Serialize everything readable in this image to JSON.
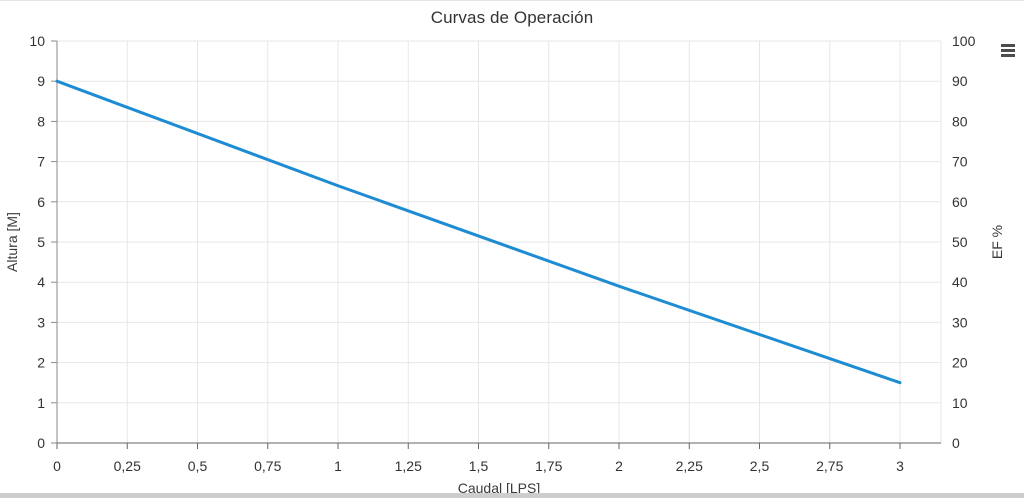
{
  "icons": {
    "context_menu": "hamburger-menu-icon"
  },
  "colors": {
    "series_line": "#1e8cd2",
    "grid": "#e7e7e7",
    "x_axis_line": "#666666",
    "y_axis_line": "#8a8a8a",
    "tick_text": "#333333",
    "title_text": "#333333",
    "bottom_divider": "#cdcdcd"
  },
  "chart_data": {
    "type": "line",
    "title": "Curvas de Operación",
    "xlabel": "Caudal [LPS]",
    "ylabel": "Altura [M]",
    "y2label": "EF %",
    "x_ticks": [
      "0",
      "0,25",
      "0,5",
      "0,75",
      "1",
      "1,25",
      "1,5",
      "1,75",
      "2",
      "2,25",
      "2,5",
      "2,75",
      "3"
    ],
    "x_tick_values": [
      0,
      0.25,
      0.5,
      0.75,
      1,
      1.25,
      1.5,
      1.75,
      2,
      2.25,
      2.5,
      2.75,
      3
    ],
    "y_ticks": [
      "0",
      "1",
      "2",
      "3",
      "4",
      "5",
      "6",
      "7",
      "8",
      "9",
      "10"
    ],
    "y_tick_values": [
      0,
      1,
      2,
      3,
      4,
      5,
      6,
      7,
      8,
      9,
      10
    ],
    "y2_ticks": [
      "0",
      "10",
      "20",
      "30",
      "40",
      "50",
      "60",
      "70",
      "80",
      "90",
      "100"
    ],
    "y2_tick_values": [
      0,
      10,
      20,
      30,
      40,
      50,
      60,
      70,
      80,
      90,
      100
    ],
    "xlim": [
      0,
      3.15
    ],
    "ylim": [
      0,
      10
    ],
    "y2lim": [
      0,
      100
    ],
    "grid": true,
    "legend": "none",
    "series": [
      {
        "axis": "left",
        "color": "#1e8cd2",
        "points": [
          [
            0,
            9.0
          ],
          [
            1,
            6.4
          ],
          [
            2,
            3.9
          ],
          [
            3,
            1.5
          ]
        ]
      }
    ]
  }
}
